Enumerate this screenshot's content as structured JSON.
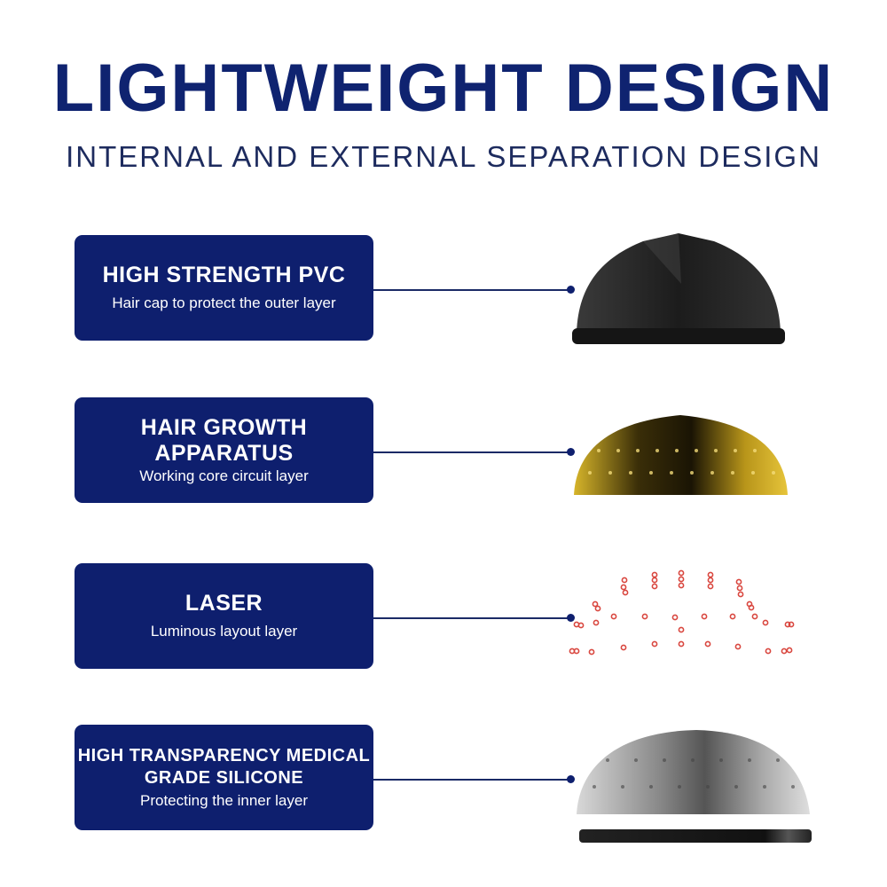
{
  "header": {
    "title": "LIGHTWEIGHT DESIGN",
    "subtitle": "INTERNAL AND EXTERNAL SEPARATION DESIGN"
  },
  "layers": [
    {
      "title": "HIGH STRENGTH PVC",
      "description": "Hair cap to protect the outer layer",
      "image": "black-cap-shell"
    },
    {
      "title": "HAIR GROWTH APPARATUS",
      "description": "Working core circuit layer",
      "image": "gold-circuit-dome"
    },
    {
      "title": "LASER",
      "description": "Luminous layout layer",
      "image": "red-laser-dots"
    },
    {
      "title": "HIGH TRANSPARENCY MEDICAL GRADE SILICONE",
      "description": "Protecting the inner layer",
      "image": "silver-silicone-dome"
    }
  ],
  "colors": {
    "navy": "#0e1f6e",
    "laser": "#d9473f",
    "gold": "#c9a11a"
  }
}
